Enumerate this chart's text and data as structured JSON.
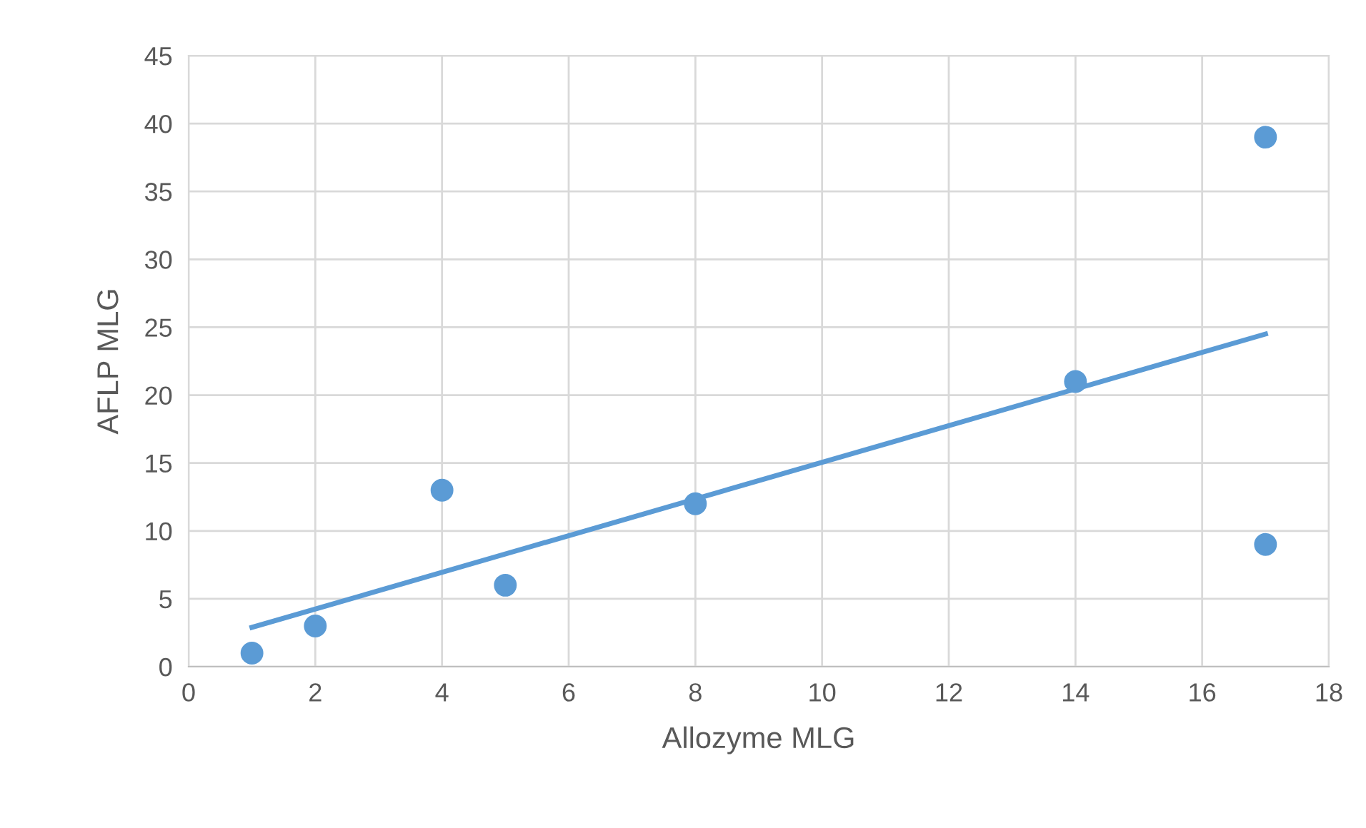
{
  "chart_data": {
    "type": "scatter",
    "xlabel": "Allozyme MLG",
    "ylabel": "AFLP MLG",
    "series": [
      {
        "color": "#5b9bd5",
        "marker": "circle",
        "x": [
          1,
          2,
          4,
          5,
          8,
          14,
          17,
          17
        ],
        "values": [
          1,
          3,
          13,
          6,
          12,
          21,
          39,
          9
        ]
      },
      {
        "type": "line",
        "color": "#5b9bd5",
        "marker": "none",
        "line_style": "solid",
        "x": [
          1,
          17
        ],
        "values": [
          2.9,
          24.5
        ]
      }
    ],
    "xlim": [
      0,
      18
    ],
    "xticks": [
      0,
      2,
      4,
      6,
      8,
      10,
      12,
      14,
      16,
      18
    ],
    "ylim": [
      0,
      45
    ],
    "yticks": [
      0,
      5,
      10,
      15,
      20,
      25,
      30,
      35,
      40,
      45
    ],
    "grid": true,
    "legend": false
  }
}
